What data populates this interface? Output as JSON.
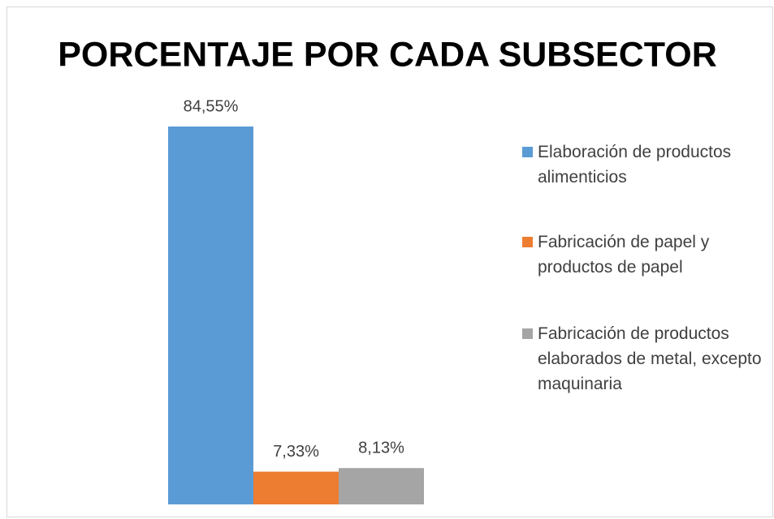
{
  "chart_data": {
    "type": "bar",
    "title": "PORCENTAJE POR CADA SUBSECTOR",
    "categories": [
      null
    ],
    "series": [
      {
        "name": "Elaboración de productos alimenticios",
        "color": "#5b9bd5",
        "values": [
          84.55
        ],
        "value_labels": [
          "84,55%"
        ]
      },
      {
        "name": "Fabricación de papel y productos de papel",
        "color": "#ed7d31",
        "values": [
          7.33
        ],
        "value_labels": [
          "7,33%"
        ]
      },
      {
        "name": "Fabricación de productos elaborados de metal, excepto maquinaria",
        "color": "#a5a5a5",
        "values": [
          8.13
        ],
        "value_labels": [
          "8,13%"
        ]
      }
    ],
    "legend": "right"
  }
}
